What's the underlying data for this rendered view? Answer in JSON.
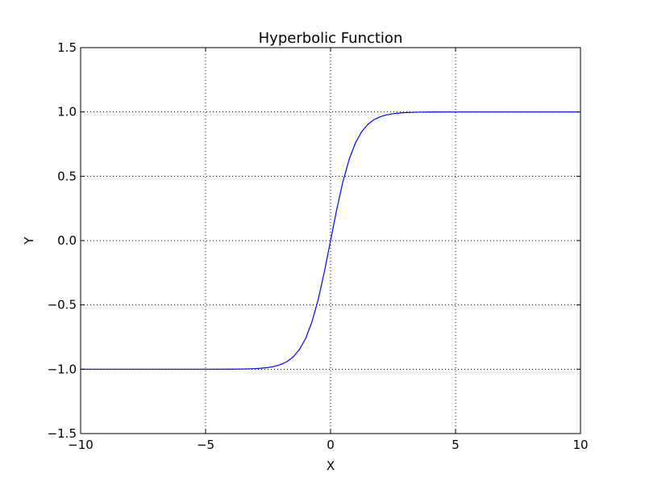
{
  "chart_data": {
    "type": "line",
    "title": "Hyperbolic Function",
    "xlabel": "X",
    "ylabel": "Y",
    "xlim": [
      -10,
      10
    ],
    "ylim": [
      -1.5,
      1.5
    ],
    "x_ticks": [
      -10,
      -5,
      0,
      5,
      10
    ],
    "x_tick_labels": [
      "−10",
      "−5",
      "0",
      "5",
      "10"
    ],
    "y_ticks": [
      -1.5,
      -1.0,
      -0.5,
      0.0,
      0.5,
      1.0,
      1.5
    ],
    "y_tick_labels": [
      "−1.5",
      "−1.0",
      "−0.5",
      "0.0",
      "0.5",
      "1.0",
      "1.5"
    ],
    "grid": true,
    "grid_style": "dotted",
    "series": [
      {
        "color": "#0000ff",
        "x": [
          -10,
          -6,
          -5,
          -4,
          -3.5,
          -3,
          -2.75,
          -2.5,
          -2.25,
          -2,
          -1.75,
          -1.5,
          -1.25,
          -1,
          -0.75,
          -0.5,
          -0.25,
          0,
          0.25,
          0.5,
          0.75,
          1,
          1.25,
          1.5,
          1.75,
          2,
          2.25,
          2.5,
          2.75,
          3,
          3.5,
          4,
          5,
          6,
          10
        ],
        "y": [
          -1.0,
          -1.0,
          -0.9999,
          -0.9993,
          -0.9982,
          -0.9951,
          -0.9918,
          -0.9866,
          -0.978,
          -0.964,
          -0.9414,
          -0.9051,
          -0.8483,
          -0.7616,
          -0.6351,
          -0.4621,
          -0.2449,
          0.0,
          0.2449,
          0.4621,
          0.6351,
          0.7616,
          0.8483,
          0.9051,
          0.9414,
          0.964,
          0.978,
          0.9866,
          0.9918,
          0.9951,
          0.9982,
          0.9993,
          0.9999,
          1.0,
          1.0
        ]
      }
    ]
  }
}
